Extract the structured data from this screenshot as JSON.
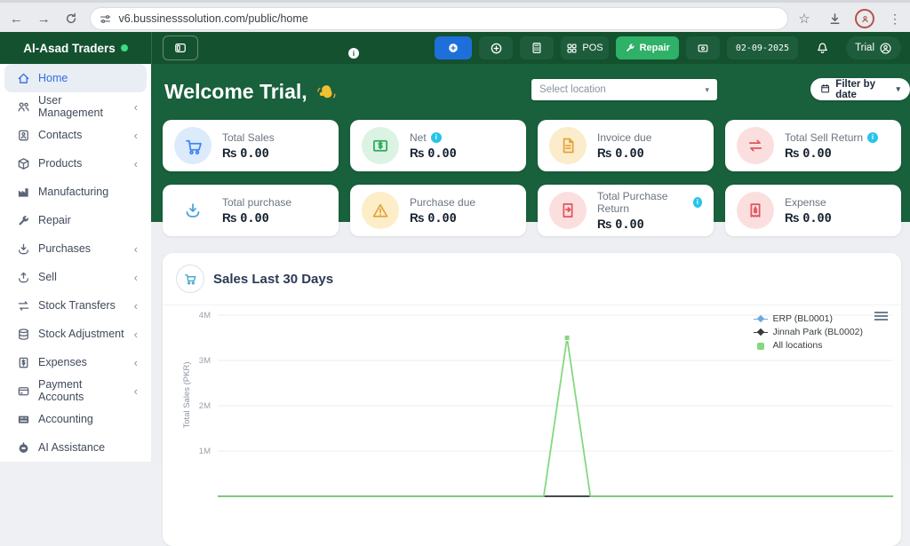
{
  "browser": {
    "back": "←",
    "forward": "→",
    "url": "v6.bussinesssolution.com/public/home",
    "star": "☆",
    "dots": "⋮"
  },
  "topbar": {
    "brand": "Al-Asad Traders",
    "pos_label": "POS",
    "repair_label": "Repair",
    "date": "02-09-2025",
    "user_label": "Trial",
    "info": "i"
  },
  "sidebar": {
    "items": [
      {
        "label": "Home",
        "icon": "home",
        "chevron": false,
        "active": true
      },
      {
        "label": "User Management",
        "icon": "users",
        "chevron": true,
        "active": false
      },
      {
        "label": "Contacts",
        "icon": "contact",
        "chevron": true,
        "active": false
      },
      {
        "label": "Products",
        "icon": "box",
        "chevron": true,
        "active": false
      },
      {
        "label": "Manufacturing",
        "icon": "factory",
        "chevron": false,
        "active": false
      },
      {
        "label": "Repair",
        "icon": "wrench",
        "chevron": false,
        "active": false
      },
      {
        "label": "Purchases",
        "icon": "download",
        "chevron": true,
        "active": false
      },
      {
        "label": "Sell",
        "icon": "upload",
        "chevron": true,
        "active": false
      },
      {
        "label": "Stock Transfers",
        "icon": "transfer",
        "chevron": true,
        "active": false
      },
      {
        "label": "Stock Adjustment",
        "icon": "database",
        "chevron": true,
        "active": false
      },
      {
        "label": "Expenses",
        "icon": "expense",
        "chevron": true,
        "active": false
      },
      {
        "label": "Payment Accounts",
        "icon": "wallet",
        "chevron": true,
        "active": false
      },
      {
        "label": "Accounting",
        "icon": "accounting",
        "chevron": false,
        "active": false
      },
      {
        "label": "AI Assistance",
        "icon": "bot",
        "chevron": false,
        "active": false
      }
    ],
    "chevron_glyph": "‹"
  },
  "main": {
    "welcome": "Welcome Trial,",
    "location_placeholder": "Select location",
    "filter_label": "Filter by date",
    "caret": "▾",
    "stats": [
      {
        "label": "Total Sales",
        "currency": "₨",
        "amount": "0.00",
        "icon": "cart",
        "color": "#3f83f8",
        "bg": "#dcebfb",
        "info": false
      },
      {
        "label": "Net",
        "currency": "₨",
        "amount": "0.00",
        "icon": "banknote",
        "color": "#2cab5c",
        "bg": "#dcf3e3",
        "info": true
      },
      {
        "label": "Invoice due",
        "currency": "₨",
        "amount": "0.00",
        "icon": "invoice",
        "color": "#e7a23c",
        "bg": "#fbeccb",
        "info": false
      },
      {
        "label": "Total Sell Return",
        "currency": "₨",
        "amount": "0.00",
        "icon": "swap",
        "color": "#e2555f",
        "bg": "#fbdfdf",
        "info": true
      },
      {
        "label": "Total purchase",
        "currency": "₨",
        "amount": "0.00",
        "icon": "download",
        "color": "#4aa3e0",
        "bg": "transparent",
        "info": false
      },
      {
        "label": "Purchase due",
        "currency": "₨",
        "amount": "0.00",
        "icon": "warning",
        "color": "#e2a33c",
        "bg": "#fdeec8",
        "info": false
      },
      {
        "label": "Total Purchase Return",
        "currency": "₨",
        "amount": "0.00",
        "icon": "file-return",
        "color": "#e2555f",
        "bg": "#fbdfdf",
        "info": true
      },
      {
        "label": "Expense",
        "currency": "₨",
        "amount": "0.00",
        "icon": "receipt",
        "color": "#e2555f",
        "bg": "#fbdfdf",
        "info": false
      }
    ]
  },
  "chart_data": {
    "type": "line",
    "title": "Sales Last 30 Days",
    "xlabel": "",
    "ylabel": "Total Sales (PKR)",
    "ylim": [
      0,
      4000000
    ],
    "yticks": [
      "4M",
      "3M",
      "2M",
      "1M"
    ],
    "grid": true,
    "legend_position": "top-right",
    "x": [
      1,
      2,
      3,
      4,
      5,
      6,
      7,
      8,
      9,
      10,
      11,
      12,
      13,
      14,
      15,
      16,
      17,
      18,
      19,
      20,
      21,
      22,
      23,
      24,
      25,
      26,
      27,
      28,
      29,
      30
    ],
    "series": [
      {
        "name": "ERP (BL0001)",
        "color": "#72a9dd",
        "marker": "diamond",
        "values": [
          0,
          0,
          0,
          0,
          0,
          0,
          0,
          0,
          0,
          0,
          0,
          0,
          0,
          0,
          0,
          0,
          0,
          0,
          0,
          0,
          0,
          0,
          0,
          0,
          0,
          0,
          0,
          0,
          0,
          0
        ]
      },
      {
        "name": "Jinnah Park (BL0002)",
        "color": "#3a3a3a",
        "marker": "diamond",
        "values": [
          0,
          0,
          0,
          0,
          0,
          0,
          0,
          0,
          0,
          0,
          0,
          0,
          0,
          0,
          0,
          0,
          0,
          0,
          0,
          0,
          0,
          0,
          0,
          0,
          0,
          0,
          0,
          0,
          0,
          0
        ]
      },
      {
        "name": "All locations",
        "color": "#84d880",
        "marker": "square",
        "values": [
          0,
          0,
          0,
          0,
          0,
          0,
          0,
          0,
          0,
          0,
          0,
          0,
          0,
          0,
          0,
          3500000,
          0,
          0,
          0,
          0,
          0,
          0,
          0,
          0,
          0,
          0,
          0,
          0,
          0,
          0
        ]
      }
    ]
  }
}
